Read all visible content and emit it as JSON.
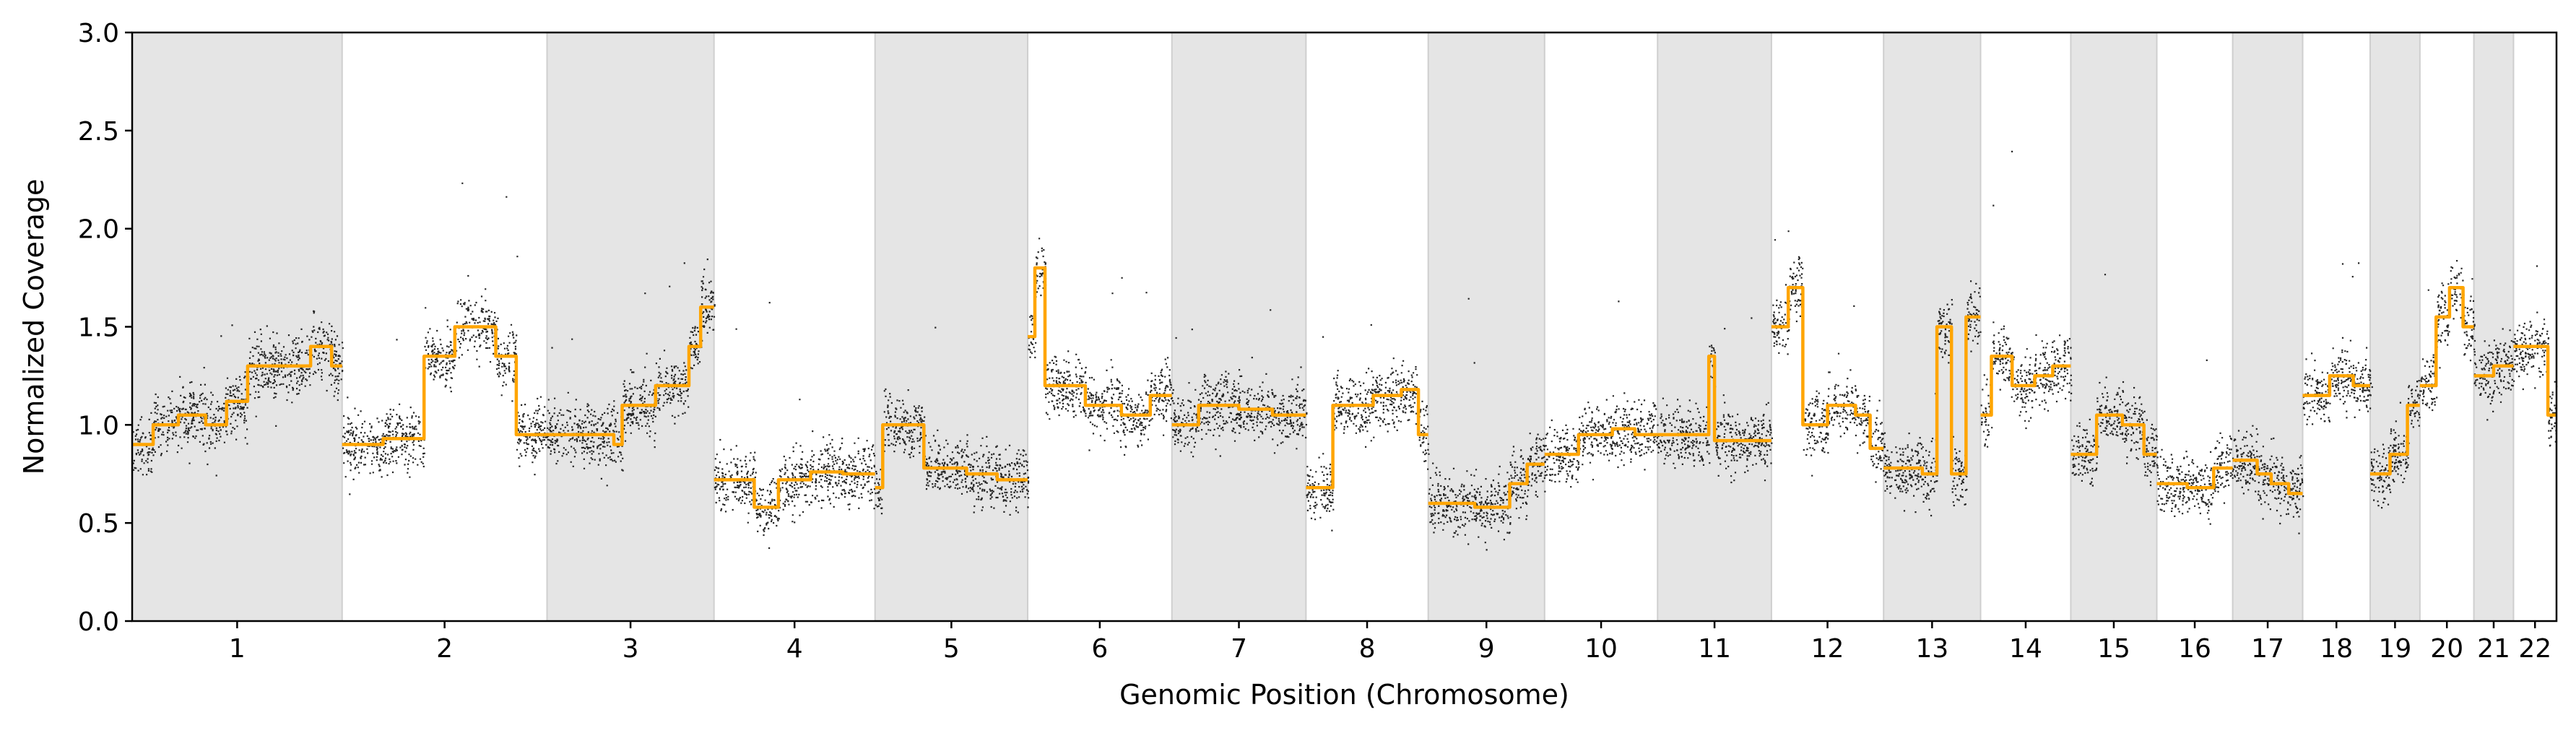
{
  "chart_data": {
    "type": "scatter",
    "title": "",
    "xlabel": "Genomic Position (Chromosome)",
    "ylabel": "Normalized Coverage",
    "ylim": [
      0,
      3.0
    ],
    "yticks": [
      "0.0",
      "0.5",
      "1.0",
      "1.5",
      "2.0",
      "2.5",
      "3.0"
    ],
    "grid": false,
    "legend": "none",
    "colors": {
      "points": "#000000",
      "segments": "#FFA500",
      "shade": "#E5E5E5"
    },
    "chromosomes": [
      {
        "label": "1",
        "size": 249,
        "shaded": true,
        "level": 1.08,
        "segments": [
          [
            0.0,
            0.9
          ],
          [
            0.1,
            1.0
          ],
          [
            0.22,
            1.05
          ],
          [
            0.35,
            1.0
          ],
          [
            0.45,
            1.12
          ],
          [
            0.55,
            1.3
          ],
          [
            0.7,
            1.3
          ],
          [
            0.85,
            1.4
          ],
          [
            0.95,
            1.3
          ]
        ]
      },
      {
        "label": "2",
        "size": 243,
        "shaded": false,
        "level": 1.05,
        "segments": [
          [
            0.0,
            0.9
          ],
          [
            0.2,
            0.93
          ],
          [
            0.4,
            1.35
          ],
          [
            0.55,
            1.5
          ],
          [
            0.75,
            1.35
          ],
          [
            0.85,
            0.95
          ]
        ]
      },
      {
        "label": "3",
        "size": 198,
        "shaded": true,
        "level": 1.05,
        "segments": [
          [
            0.0,
            0.95
          ],
          [
            0.4,
            0.9
          ],
          [
            0.45,
            1.1
          ],
          [
            0.65,
            1.2
          ],
          [
            0.85,
            1.4
          ],
          [
            0.92,
            1.6
          ]
        ]
      },
      {
        "label": "4",
        "size": 191,
        "shaded": false,
        "level": 0.72,
        "segments": [
          [
            0.0,
            0.72
          ],
          [
            0.25,
            0.58
          ],
          [
            0.4,
            0.72
          ],
          [
            0.6,
            0.76
          ],
          [
            0.8,
            0.75
          ]
        ]
      },
      {
        "label": "5",
        "size": 181,
        "shaded": true,
        "level": 0.85,
        "segments": [
          [
            0.0,
            0.68
          ],
          [
            0.05,
            1.0
          ],
          [
            0.3,
            1.0
          ],
          [
            0.32,
            0.78
          ],
          [
            0.6,
            0.75
          ],
          [
            0.8,
            0.72
          ]
        ]
      },
      {
        "label": "6",
        "size": 171,
        "shaded": false,
        "level": 1.2,
        "segments": [
          [
            0.0,
            1.45
          ],
          [
            0.05,
            1.8
          ],
          [
            0.12,
            1.2
          ],
          [
            0.4,
            1.1
          ],
          [
            0.65,
            1.05
          ],
          [
            0.85,
            1.15
          ]
        ]
      },
      {
        "label": "7",
        "size": 159,
        "shaded": true,
        "level": 1.05,
        "segments": [
          [
            0.0,
            1.0
          ],
          [
            0.2,
            1.1
          ],
          [
            0.5,
            1.08
          ],
          [
            0.75,
            1.05
          ]
        ]
      },
      {
        "label": "8",
        "size": 145,
        "shaded": false,
        "level": 1.0,
        "segments": [
          [
            0.0,
            0.68
          ],
          [
            0.22,
            1.1
          ],
          [
            0.55,
            1.15
          ],
          [
            0.78,
            1.18
          ],
          [
            0.92,
            0.95
          ]
        ]
      },
      {
        "label": "9",
        "size": 138,
        "shaded": true,
        "level": 0.6,
        "segments": [
          [
            0.0,
            0.6
          ],
          [
            0.4,
            0.58
          ],
          [
            0.7,
            0.7
          ],
          [
            0.85,
            0.8
          ]
        ]
      },
      {
        "label": "10",
        "size": 134,
        "shaded": false,
        "level": 0.95,
        "segments": [
          [
            0.0,
            0.85
          ],
          [
            0.3,
            0.95
          ],
          [
            0.6,
            0.98
          ],
          [
            0.8,
            0.95
          ]
        ]
      },
      {
        "label": "11",
        "size": 135,
        "shaded": true,
        "level": 0.95,
        "segments": [
          [
            0.0,
            0.95
          ],
          [
            0.45,
            1.35
          ],
          [
            0.5,
            0.92
          ],
          [
            0.8,
            0.92
          ]
        ]
      },
      {
        "label": "12",
        "size": 133,
        "shaded": false,
        "level": 1.15,
        "segments": [
          [
            0.0,
            1.5
          ],
          [
            0.15,
            1.7
          ],
          [
            0.28,
            1.0
          ],
          [
            0.5,
            1.1
          ],
          [
            0.75,
            1.05
          ],
          [
            0.88,
            0.88
          ]
        ]
      },
      {
        "label": "13",
        "size": 115,
        "shaded": true,
        "level": 0.85,
        "segments": [
          [
            0.0,
            0.78
          ],
          [
            0.4,
            0.75
          ],
          [
            0.55,
            1.5
          ],
          [
            0.7,
            0.75
          ],
          [
            0.85,
            1.55
          ]
        ]
      },
      {
        "label": "14",
        "size": 107,
        "shaded": false,
        "level": 1.2,
        "segments": [
          [
            0.0,
            1.05
          ],
          [
            0.12,
            1.35
          ],
          [
            0.35,
            1.2
          ],
          [
            0.6,
            1.25
          ],
          [
            0.8,
            1.3
          ]
        ]
      },
      {
        "label": "15",
        "size": 102,
        "shaded": true,
        "level": 0.95,
        "segments": [
          [
            0.0,
            0.85
          ],
          [
            0.3,
            1.05
          ],
          [
            0.6,
            1.0
          ],
          [
            0.85,
            0.85
          ]
        ]
      },
      {
        "label": "16",
        "size": 90,
        "shaded": false,
        "level": 0.75,
        "segments": [
          [
            0.0,
            0.7
          ],
          [
            0.4,
            0.68
          ],
          [
            0.75,
            0.78
          ]
        ]
      },
      {
        "label": "17",
        "size": 83,
        "shaded": true,
        "level": 0.75,
        "segments": [
          [
            0.0,
            0.82
          ],
          [
            0.35,
            0.75
          ],
          [
            0.55,
            0.7
          ],
          [
            0.8,
            0.65
          ]
        ]
      },
      {
        "label": "18",
        "size": 80,
        "shaded": false,
        "level": 1.2,
        "segments": [
          [
            0.0,
            1.15
          ],
          [
            0.4,
            1.25
          ],
          [
            0.75,
            1.2
          ]
        ]
      },
      {
        "label": "19",
        "size": 59,
        "shaded": true,
        "level": 0.85,
        "segments": [
          [
            0.0,
            0.75
          ],
          [
            0.4,
            0.85
          ],
          [
            0.75,
            1.1
          ]
        ]
      },
      {
        "label": "20",
        "size": 64,
        "shaded": false,
        "level": 1.45,
        "segments": [
          [
            0.0,
            1.2
          ],
          [
            0.3,
            1.55
          ],
          [
            0.55,
            1.7
          ],
          [
            0.8,
            1.5
          ]
        ]
      },
      {
        "label": "21",
        "size": 47,
        "shaded": true,
        "level": 1.25,
        "segments": [
          [
            0.0,
            1.25
          ],
          [
            0.5,
            1.3
          ]
        ]
      },
      {
        "label": "22",
        "size": 51,
        "shaded": false,
        "level": 1.15,
        "segments": [
          [
            0.0,
            1.4
          ],
          [
            0.5,
            1.4
          ],
          [
            0.8,
            1.05
          ]
        ]
      }
    ]
  }
}
